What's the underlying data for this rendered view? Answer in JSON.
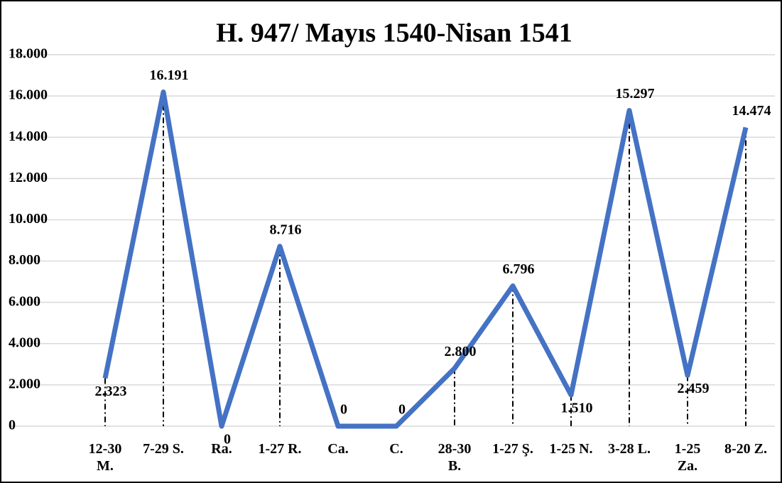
{
  "chart_data": {
    "type": "line",
    "title": "H. 947/ Mayıs 1540-Nisan 1541",
    "categories": [
      "12-30\nM.",
      "7-29 S.",
      "Ra.",
      "1-27 R.",
      "Ca.",
      "C.",
      "28-30\nB.",
      "1-27 Ş.",
      "1-25 N.",
      "3-28 L.",
      "1-25\nZa.",
      "8-20 Z."
    ],
    "series": [
      {
        "name": "H. 947",
        "color": "#4472c4",
        "values": [
          2323,
          16191,
          0,
          8716,
          0,
          0,
          2800,
          6796,
          1510,
          15297,
          2459,
          14474
        ],
        "value_labels": [
          "2.323",
          "16.191",
          "0",
          "8.716",
          "0",
          "0",
          "2.800",
          "6.796",
          "1.510",
          "15.297",
          "2.459",
          "14.474"
        ]
      }
    ],
    "ylim": [
      0,
      18000
    ],
    "yticks": [
      0,
      {
        "value": 2000,
        "label": "2.000"
      },
      {
        "value": 4000,
        "label": "4.000"
      },
      {
        "value": 6000,
        "label": "6.000"
      },
      {
        "value": 8000,
        "label": "8.000"
      },
      {
        "value": 10000,
        "label": "10.000"
      },
      {
        "value": 12000,
        "label": "12.000"
      },
      {
        "value": 14000,
        "label": "14.000"
      },
      {
        "value": 16000,
        "label": "16.000"
      },
      {
        "value": 18000,
        "label": "18.000"
      }
    ],
    "grid": true
  }
}
